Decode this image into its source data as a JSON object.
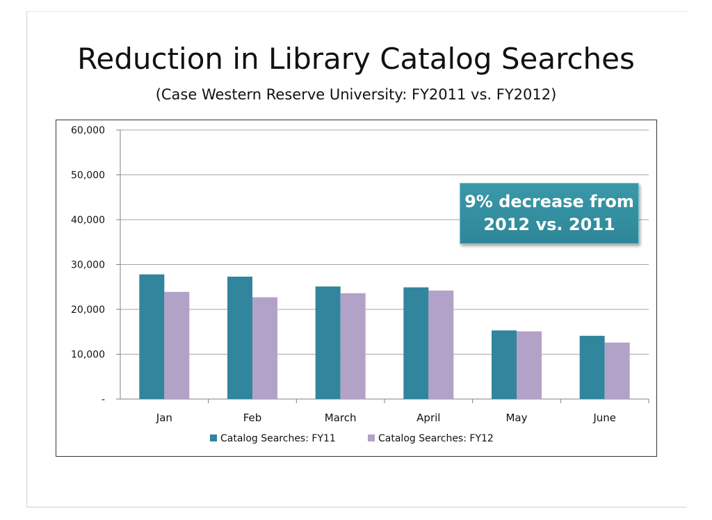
{
  "slide": {
    "title": "Reduction in Library Catalog Searches",
    "subtitle": "(Case Western Reserve University: FY2011 vs. FY2012)",
    "callout_line1": "9% decrease from",
    "callout_line2": "2012 vs. 2011"
  },
  "chart_data": {
    "type": "bar",
    "title": "",
    "xlabel": "",
    "ylabel": "",
    "categories": [
      "Jan",
      "Feb",
      "March",
      "April",
      "May",
      "June"
    ],
    "series": [
      {
        "name": "Catalog Searches: FY11",
        "color": "#31859c",
        "values": [
          27800,
          27300,
          25100,
          24900,
          15300,
          14100
        ]
      },
      {
        "name": "Catalog Searches: FY12",
        "color": "#b3a2c7",
        "values": [
          23900,
          22700,
          23600,
          24200,
          15100,
          12600
        ]
      }
    ],
    "ylim": [
      0,
      60000
    ],
    "yticks": [
      0,
      10000,
      20000,
      30000,
      40000,
      50000,
      60000
    ],
    "ytick_labels": [
      "-",
      "10,000",
      "20,000",
      "30,000",
      "40,000",
      "50,000",
      "60,000"
    ],
    "grid": true,
    "legend_position": "bottom"
  }
}
